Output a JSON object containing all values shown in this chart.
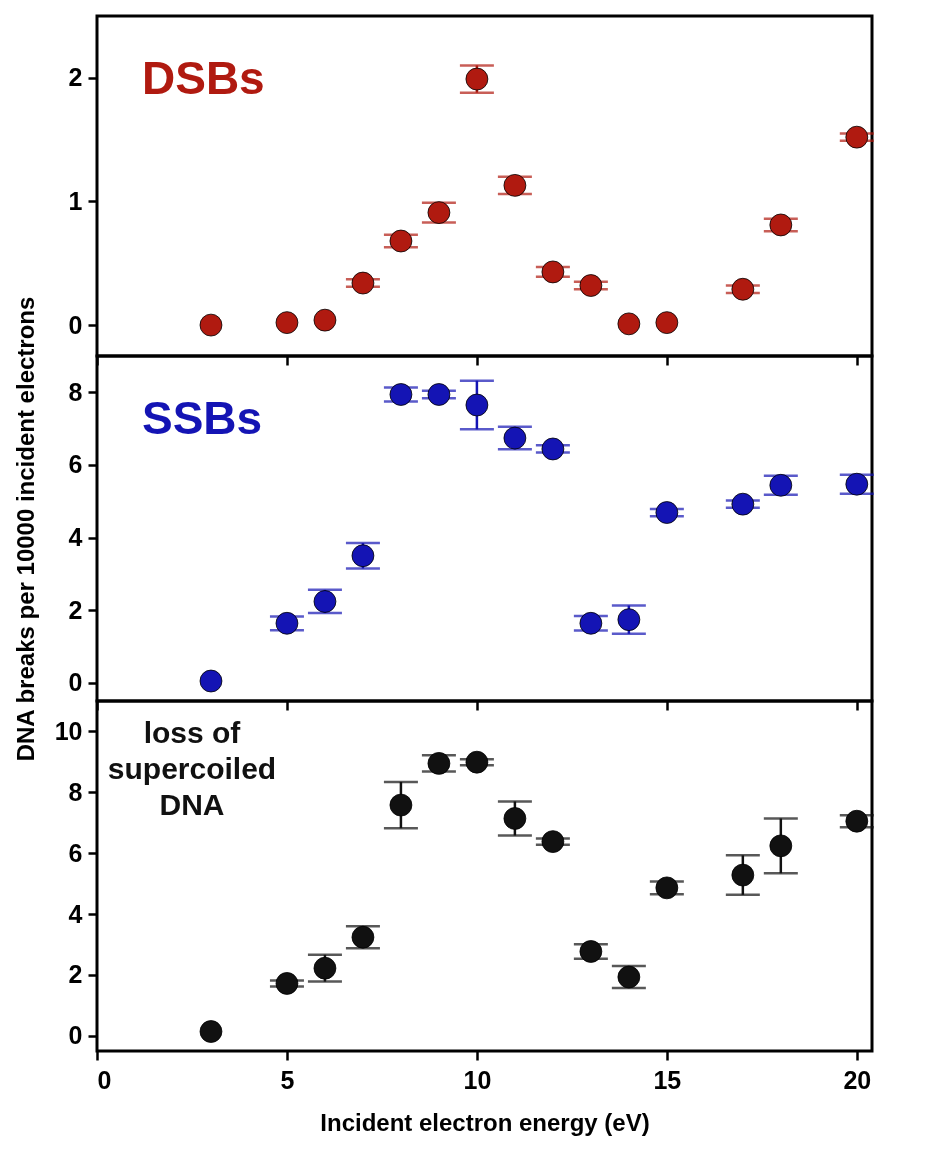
{
  "chart_data": [
    {
      "type": "scatter",
      "xlim": [
        0,
        20.4
      ],
      "xticks": [
        0,
        5,
        10,
        15,
        20
      ],
      "ylim": [
        -0.25,
        2.5
      ],
      "yticks": [
        0,
        1,
        2
      ],
      "tick_labels": "y",
      "marker": "circle",
      "x": [
        3,
        5,
        6,
        7,
        8,
        9,
        10,
        11,
        12,
        13,
        14,
        15,
        17,
        18,
        20
      ],
      "series": [
        {
          "name": "DSBs",
          "color": "#b01a10",
          "values": [
            0,
            0.02,
            0.04,
            0.34,
            0.68,
            0.91,
            1.99,
            1.13,
            0.43,
            0.32,
            0.01,
            0.02,
            0.29,
            0.81,
            1.52
          ],
          "errors": [
            null,
            null,
            null,
            0.03,
            0.05,
            0.08,
            0.11,
            0.07,
            0.04,
            0.03,
            null,
            null,
            0.03,
            0.05,
            0.03
          ]
        }
      ]
    },
    {
      "type": "scatter",
      "xlim": [
        0,
        20.4
      ],
      "xticks": [
        0,
        5,
        10,
        15,
        20
      ],
      "ylim": [
        -0.5,
        9
      ],
      "yticks": [
        0,
        2,
        4,
        6,
        8
      ],
      "tick_labels": "y",
      "marker": "circle",
      "ylabel": "DNA breaks per 10000 incident electrons",
      "x": [
        3,
        5,
        6,
        7,
        8,
        9,
        10,
        11,
        12,
        13,
        14,
        15,
        17,
        18,
        20
      ],
      "series": [
        {
          "name": "SSBs",
          "color": "#1414b4",
          "values": [
            0.05,
            1.64,
            2.24,
            3.5,
            7.94,
            7.94,
            7.65,
            6.74,
            6.44,
            1.64,
            1.74,
            4.69,
            4.92,
            5.44,
            5.47
          ],
          "errors": [
            null,
            0.19,
            0.32,
            0.35,
            0.19,
            0.1,
            0.67,
            0.31,
            0.1,
            0.2,
            0.39,
            0.1,
            0.1,
            0.26,
            0.26
          ]
        }
      ]
    },
    {
      "type": "scatter",
      "xlim": [
        0,
        20.4
      ],
      "xticks": [
        0,
        5,
        10,
        15,
        20
      ],
      "ylim": [
        -0.5,
        11
      ],
      "yticks": [
        0,
        2,
        4,
        6,
        8,
        10
      ],
      "marker": "circle",
      "xlabel": "Incident electron energy (eV)",
      "x": [
        3,
        5,
        6,
        7,
        8,
        9,
        10,
        11,
        12,
        13,
        14,
        15,
        17,
        18,
        20
      ],
      "series": [
        {
          "name": "loss of\nsupercoiled\nDNA",
          "color": "#111111",
          "values": [
            0.14,
            1.72,
            2.22,
            3.24,
            7.58,
            8.95,
            8.99,
            7.14,
            6.38,
            2.77,
            1.93,
            4.86,
            5.28,
            6.24,
            7.05
          ],
          "errors": [
            null,
            0.1,
            0.44,
            0.36,
            0.76,
            0.27,
            0.1,
            0.56,
            0.1,
            0.24,
            0.36,
            0.21,
            0.65,
            0.9,
            0.2
          ]
        }
      ]
    }
  ]
}
